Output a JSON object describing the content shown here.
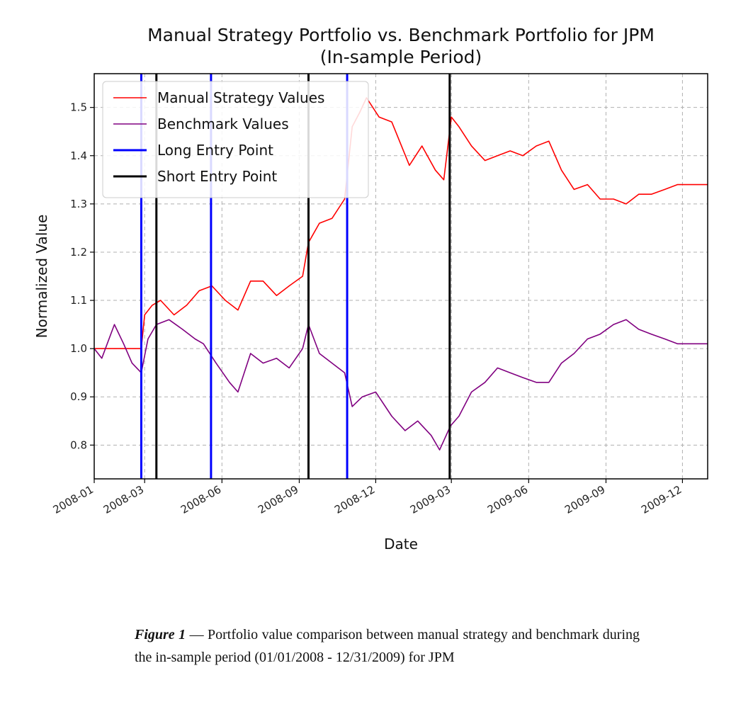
{
  "chart_data": {
    "type": "line",
    "title": "Manual Strategy Portfolio vs. Benchmark Portfolio for JPM",
    "subtitle": "(In-sample Period)",
    "xlabel": "Date",
    "ylabel": "Normalized Value",
    "xlim": [
      "2008-01-01",
      "2009-12-31"
    ],
    "ylim": [
      0.73,
      1.57
    ],
    "x_ticks": [
      "2008-01",
      "2008-03",
      "2008-06",
      "2008-09",
      "2008-12",
      "2009-03",
      "2009-06",
      "2009-09",
      "2009-12"
    ],
    "y_ticks": [
      0.8,
      0.9,
      1.0,
      1.1,
      1.2,
      1.3,
      1.4,
      1.5
    ],
    "grid": true,
    "legend_position": "top-left",
    "series": [
      {
        "name": "Manual Strategy Values",
        "color": "#ff0000",
        "x": [
          "2008-01-01",
          "2008-01-20",
          "2008-02-10",
          "2008-02-26",
          "2008-03-01",
          "2008-03-10",
          "2008-03-20",
          "2008-04-05",
          "2008-04-20",
          "2008-05-05",
          "2008-05-20",
          "2008-06-05",
          "2008-06-20",
          "2008-07-05",
          "2008-07-20",
          "2008-08-05",
          "2008-08-20",
          "2008-09-05",
          "2008-09-12",
          "2008-09-25",
          "2008-10-10",
          "2008-10-25",
          "2008-11-03",
          "2008-11-12",
          "2008-11-20",
          "2008-12-05",
          "2008-12-20",
          "2009-01-10",
          "2009-01-25",
          "2009-02-10",
          "2009-02-20",
          "2009-03-01",
          "2009-03-10",
          "2009-03-25",
          "2009-04-10",
          "2009-04-25",
          "2009-05-10",
          "2009-05-25",
          "2009-06-10",
          "2009-06-25",
          "2009-07-10",
          "2009-07-25",
          "2009-08-10",
          "2009-08-25",
          "2009-09-10",
          "2009-09-25",
          "2009-10-10",
          "2009-10-25",
          "2009-11-10",
          "2009-11-25",
          "2009-12-10",
          "2009-12-31"
        ],
        "values": [
          1.0,
          1.0,
          1.0,
          1.0,
          1.07,
          1.09,
          1.1,
          1.07,
          1.09,
          1.12,
          1.13,
          1.1,
          1.08,
          1.14,
          1.14,
          1.11,
          1.13,
          1.15,
          1.22,
          1.26,
          1.27,
          1.31,
          1.46,
          1.49,
          1.52,
          1.48,
          1.47,
          1.38,
          1.42,
          1.37,
          1.35,
          1.48,
          1.46,
          1.42,
          1.39,
          1.4,
          1.41,
          1.4,
          1.42,
          1.43,
          1.37,
          1.33,
          1.34,
          1.31,
          1.31,
          1.3,
          1.32,
          1.32,
          1.33,
          1.34,
          1.34,
          1.34
        ]
      },
      {
        "name": "Benchmark Values",
        "color": "#800080",
        "x": [
          "2008-01-01",
          "2008-01-10",
          "2008-01-25",
          "2008-02-05",
          "2008-02-15",
          "2008-02-26",
          "2008-03-05",
          "2008-03-15",
          "2008-03-30",
          "2008-04-15",
          "2008-04-30",
          "2008-05-10",
          "2008-05-25",
          "2008-06-10",
          "2008-06-20",
          "2008-07-05",
          "2008-07-20",
          "2008-08-05",
          "2008-08-20",
          "2008-09-05",
          "2008-09-12",
          "2008-09-25",
          "2008-10-10",
          "2008-10-25",
          "2008-11-03",
          "2008-11-15",
          "2008-12-01",
          "2008-12-20",
          "2009-01-05",
          "2009-01-20",
          "2009-02-05",
          "2009-02-15",
          "2009-02-28",
          "2009-03-10",
          "2009-03-25",
          "2009-04-10",
          "2009-04-25",
          "2009-05-10",
          "2009-05-25",
          "2009-06-10",
          "2009-06-25",
          "2009-07-10",
          "2009-07-25",
          "2009-08-10",
          "2009-08-25",
          "2009-09-10",
          "2009-09-25",
          "2009-10-10",
          "2009-10-25",
          "2009-11-10",
          "2009-11-25",
          "2009-12-10",
          "2009-12-31"
        ],
        "values": [
          1.0,
          0.98,
          1.05,
          1.01,
          0.97,
          0.95,
          1.02,
          1.05,
          1.06,
          1.04,
          1.02,
          1.01,
          0.97,
          0.93,
          0.91,
          0.99,
          0.97,
          0.98,
          0.96,
          1.0,
          1.05,
          0.99,
          0.97,
          0.95,
          0.88,
          0.9,
          0.91,
          0.86,
          0.83,
          0.85,
          0.82,
          0.79,
          0.84,
          0.86,
          0.91,
          0.93,
          0.96,
          0.95,
          0.94,
          0.93,
          0.93,
          0.97,
          0.99,
          1.02,
          1.03,
          1.05,
          1.06,
          1.04,
          1.03,
          1.02,
          1.01,
          1.01,
          1.01
        ]
      }
    ],
    "vertical_lines": [
      {
        "series": "Long Entry Point",
        "color": "#0000ff",
        "dates": [
          "2008-02-26",
          "2008-05-19",
          "2008-10-28"
        ]
      },
      {
        "series": "Short Entry Point",
        "color": "#000000",
        "dates": [
          "2008-03-15",
          "2008-09-12",
          "2009-02-27"
        ]
      }
    ],
    "legend": [
      {
        "label": "Manual Strategy Values",
        "color": "#ff0000",
        "width": 1.5
      },
      {
        "label": "Benchmark Values",
        "color": "#800080",
        "width": 1.5
      },
      {
        "label": "Long Entry Point",
        "color": "#0000ff",
        "width": 3
      },
      {
        "label": "Short Entry Point",
        "color": "#000000",
        "width": 3
      }
    ]
  },
  "caption": {
    "lead": "Figure 1",
    "dash": " — ",
    "text": "Portfolio value comparison between manual strategy and benchmark during the in-sample period (01/01/2008 - 12/31/2009) for JPM"
  }
}
